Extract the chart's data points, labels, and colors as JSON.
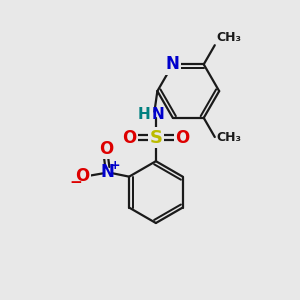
{
  "bg_color": "#e8e8e8",
  "bond_color": "#1a1a1a",
  "bond_width": 1.6,
  "atom_colors": {
    "N": "#0000cc",
    "O": "#dd0000",
    "S": "#bbbb00",
    "H": "#008080",
    "C": "#1a1a1a"
  },
  "font_size_atom": 11,
  "font_size_methyl": 9,
  "font_size_small": 8
}
